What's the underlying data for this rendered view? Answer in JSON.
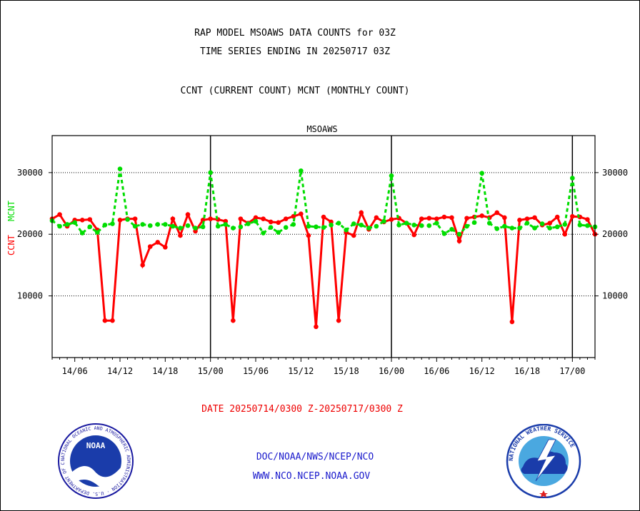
{
  "header": {
    "line1": "RAP MODEL MSOAWS DATA COUNTS for 03Z",
    "line2": "TIME SERIES ENDING IN 20250717 03Z",
    "line3": "CCNT (CURRENT COUNT) MCNT (MONTHLY COUNT)"
  },
  "footer": {
    "date_range": "DATE 20250714/0300 Z-20250717/0300 Z",
    "link1": "DOC/NOAA/NWS/NCEP/NCO",
    "link2": "WWW.NCO.NCEP.NOAA.GOV"
  },
  "logos": {
    "left": {
      "name": "noaa-logo",
      "text": "NOAA",
      "ring_text": "NATIONAL OCEANIC AND ATMOSPHERIC ADMINISTRATION · U.S. DEPARTMENT OF COMMERCE"
    },
    "right": {
      "name": "nws-logo",
      "ring_text": "NATIONAL WEATHER SERVICE"
    }
  },
  "colors": {
    "ccnt": "#ff0000",
    "mcnt": "#00dd00",
    "title_blue": "#0000cc",
    "footer_blue": "#1a1acc",
    "date_red": "#ee0000"
  },
  "chart_data": {
    "type": "line",
    "title": "MSOAWS",
    "ylabel_ccnt": "CCNT",
    "ylabel_mcnt": "MCNT",
    "ylim": [
      0,
      36000
    ],
    "yticks": [
      10000,
      20000,
      30000
    ],
    "ytick_labels": [
      "10000",
      "20000",
      "30000"
    ],
    "xlim": [
      0,
      72
    ],
    "xticks": [
      3,
      9,
      15,
      21,
      27,
      33,
      39,
      45,
      51,
      57,
      63,
      69
    ],
    "xtick_labels": [
      "14/06",
      "14/12",
      "14/18",
      "15/00",
      "15/06",
      "15/12",
      "15/18",
      "16/00",
      "16/06",
      "16/12",
      "16/18",
      "17/00"
    ],
    "day_boundaries": [
      21,
      45,
      69
    ],
    "grid_y": true,
    "series": [
      {
        "name": "CCNT",
        "color": "#ff0000",
        "style": "solid",
        "x": [
          0,
          1,
          2,
          3,
          4,
          5,
          6,
          7,
          8,
          9,
          10,
          11,
          12,
          13,
          14,
          15,
          16,
          17,
          18,
          19,
          20,
          21,
          22,
          23,
          24,
          25,
          26,
          27,
          28,
          29,
          30,
          31,
          32,
          33,
          34,
          35,
          36,
          37,
          38,
          39,
          40,
          41,
          42,
          43,
          44,
          45,
          46,
          47,
          48,
          49,
          50,
          51,
          52,
          53,
          54,
          55,
          56,
          57,
          58,
          59,
          60,
          61,
          62,
          63,
          64,
          65,
          66,
          67,
          68,
          69,
          70,
          71,
          72
        ],
        "values": [
          22500,
          23200,
          21300,
          22300,
          22300,
          22400,
          20700,
          6000,
          6000,
          22300,
          22500,
          22500,
          15000,
          18000,
          18700,
          17900,
          22500,
          19800,
          23200,
          20500,
          22300,
          22500,
          22400,
          22100,
          6000,
          22500,
          21800,
          22700,
          22500,
          22000,
          21900,
          22500,
          22900,
          23300,
          19800,
          5000,
          22800,
          22000,
          6000,
          20300,
          19800,
          23500,
          20800,
          22700,
          22000,
          22400,
          22600,
          21800,
          19900,
          22500,
          22600,
          22500,
          22800,
          22700,
          18900,
          22600,
          22800,
          23000,
          22700,
          23500,
          22700,
          5800,
          22300,
          22500,
          22700,
          21500,
          21800,
          22800,
          20000,
          22900,
          22800,
          22400,
          20000
        ]
      },
      {
        "name": "MCNT",
        "color": "#00dd00",
        "style": "dashed",
        "x": [
          0,
          1,
          2,
          3,
          4,
          5,
          6,
          7,
          8,
          9,
          10,
          11,
          12,
          13,
          14,
          15,
          16,
          17,
          18,
          19,
          20,
          21,
          22,
          23,
          24,
          25,
          26,
          27,
          28,
          29,
          30,
          31,
          32,
          33,
          34,
          35,
          36,
          37,
          38,
          39,
          40,
          41,
          42,
          43,
          44,
          45,
          46,
          47,
          48,
          49,
          50,
          51,
          52,
          53,
          54,
          55,
          56,
          57,
          58,
          59,
          60,
          61,
          62,
          63,
          64,
          65,
          66,
          67,
          68,
          69,
          70,
          71,
          72
        ],
        "values": [
          22200,
          21300,
          21600,
          21900,
          20200,
          21200,
          20300,
          21500,
          21700,
          30600,
          22400,
          21300,
          21600,
          21400,
          21600,
          21600,
          21300,
          21000,
          21400,
          21000,
          21200,
          30000,
          21300,
          21600,
          21000,
          21200,
          21700,
          22100,
          20200,
          21100,
          20300,
          21100,
          21600,
          30300,
          21300,
          21200,
          21100,
          21500,
          21800,
          20700,
          21700,
          21500,
          21000,
          21300,
          22100,
          29500,
          21500,
          21800,
          21500,
          21400,
          21400,
          21800,
          20100,
          20800,
          20000,
          21300,
          21900,
          29900,
          21800,
          20900,
          21300,
          21000,
          21000,
          21800,
          21000,
          21700,
          21000,
          21200,
          21600,
          29100,
          21500,
          21400,
          21200
        ]
      }
    ]
  }
}
